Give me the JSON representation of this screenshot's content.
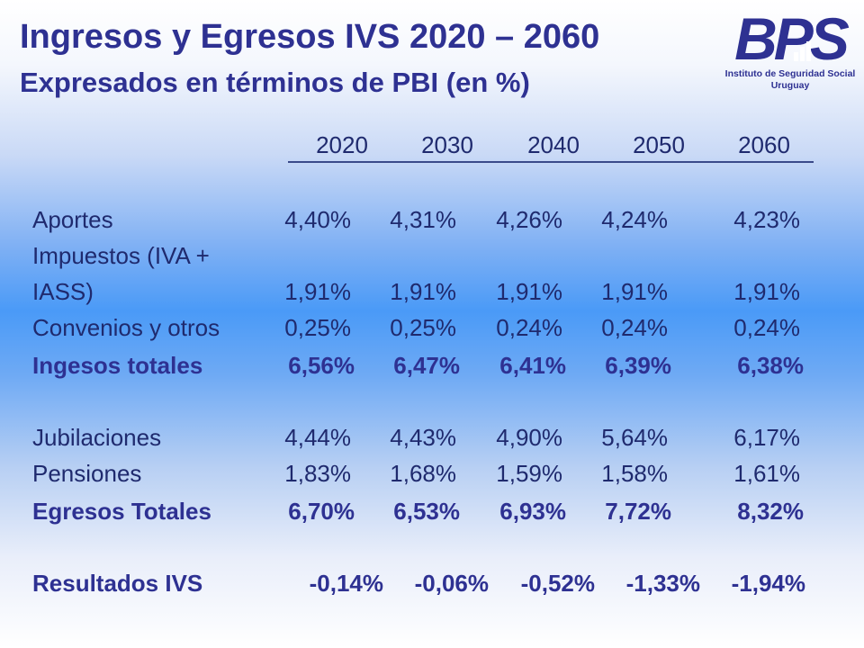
{
  "header": {
    "title": "Ingresos y Egresos IVS 2020 – 2060",
    "subtitle": "Expresados en términos de PBI (en %)"
  },
  "logo": {
    "text": "BPS",
    "caption_line1": "Instituto de Seguridad Social",
    "caption_line2": "Uruguay",
    "color": "#2e3192"
  },
  "table": {
    "years": [
      "2020",
      "2030",
      "2040",
      "2050",
      "2060"
    ],
    "rows": [
      {
        "label": "Aportes",
        "values": [
          "4,40%",
          "4,31%",
          "4,26%",
          "4,24%",
          "4,23%"
        ]
      },
      {
        "label_line1": "Impuestos  (IVA +",
        "label_line2": "IASS)",
        "values": [
          "1,91%",
          "1,91%",
          "1,91%",
          "1,91%",
          "1,91%"
        ]
      },
      {
        "label": "Convenios  y otros",
        "values": [
          "0,25%",
          "0,25%",
          "0,24%",
          "0,24%",
          "0,24%"
        ]
      },
      {
        "label": "Ingesos totales",
        "values": [
          "6,56%",
          "6,47%",
          "6,41%",
          "6,39%",
          "6,38%"
        ]
      },
      {
        "label": "Jubilaciones",
        "values": [
          "4,44%",
          "4,43%",
          "4,90%",
          "5,64%",
          "6,17%"
        ]
      },
      {
        "label": "Pensiones",
        "values": [
          "1,83%",
          "1,68%",
          "1,59%",
          "1,58%",
          "1,61%"
        ]
      },
      {
        "label": "Egresos Totales",
        "values": [
          "6,70%",
          "6,53%",
          "6,93%",
          "7,72%",
          "8,32%"
        ]
      },
      {
        "label": "Resultados  IVS",
        "values": [
          "-0,14%",
          "-0,06%",
          "-0,52%",
          "-1,33%",
          "-1,94%"
        ]
      }
    ]
  }
}
